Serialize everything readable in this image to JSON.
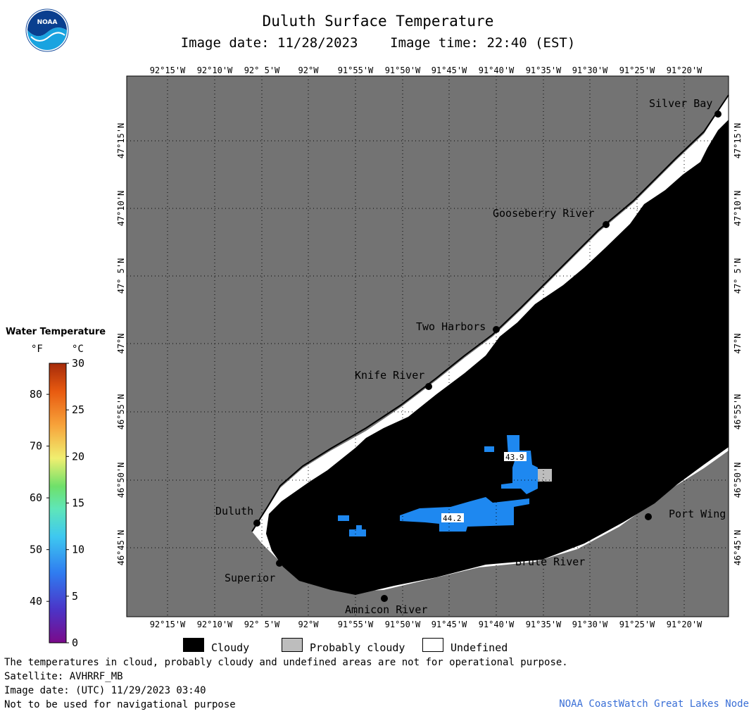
{
  "header": {
    "title": "Duluth Surface Temperature",
    "date_label": "Image date:",
    "date": "11/28/2023",
    "time_label": "Image time:",
    "time": "22:40 (EST)"
  },
  "logo": {
    "text": "NOAA"
  },
  "map": {
    "lon_labels": [
      "92°15'W",
      "92°10'W",
      "92° 5'W",
      "92°W",
      "91°55'W",
      "91°50'W",
      "91°45'W",
      "91°40'W",
      "91°35'W",
      "91°30'W",
      "91°25'W",
      "91°20'W"
    ],
    "lat_labels": [
      "47°15'N",
      "47°10'N",
      "47° 5'N",
      "47°N",
      "46°55'N",
      "46°50'N",
      "46°45'N"
    ],
    "places": [
      "Silver Bay",
      "Gooseberry River",
      "Two Harbors",
      "Knife River",
      "Duluth",
      "Superior",
      "Amnicon River",
      "Brule River",
      "Port Wing"
    ],
    "temperature_labels": [
      "43.9",
      "44.2"
    ],
    "colors": {
      "land": "#737373",
      "cloud": "#000000",
      "undefined": "#ffffff",
      "probably_cloudy": "#bdbdbd",
      "warm_water": "#1e88f0"
    }
  },
  "legend": {
    "title": "Water Temperature",
    "unit_f": "°F",
    "unit_c": "°C",
    "f_ticks": [
      "80",
      "70",
      "60",
      "50",
      "40"
    ],
    "c_ticks": [
      "30",
      "25",
      "20",
      "15",
      "10",
      "5",
      "0"
    ],
    "range_c": [
      0,
      30
    ]
  },
  "key": [
    {
      "label": "Cloudy",
      "color": "#000000"
    },
    {
      "label": "Probably cloudy",
      "color": "#bdbdbd"
    },
    {
      "label": "Undefined",
      "color": "#ffffff"
    }
  ],
  "notes": [
    "The temperatures in cloud, probably cloudy and undefined areas are not for operational purpose.",
    "Satellite: AVHRRF_MB",
    "Image date: (UTC) 11/29/2023  03:40",
    "Not to be used for navigational purpose"
  ],
  "credit": "NOAA CoastWatch Great Lakes Node"
}
